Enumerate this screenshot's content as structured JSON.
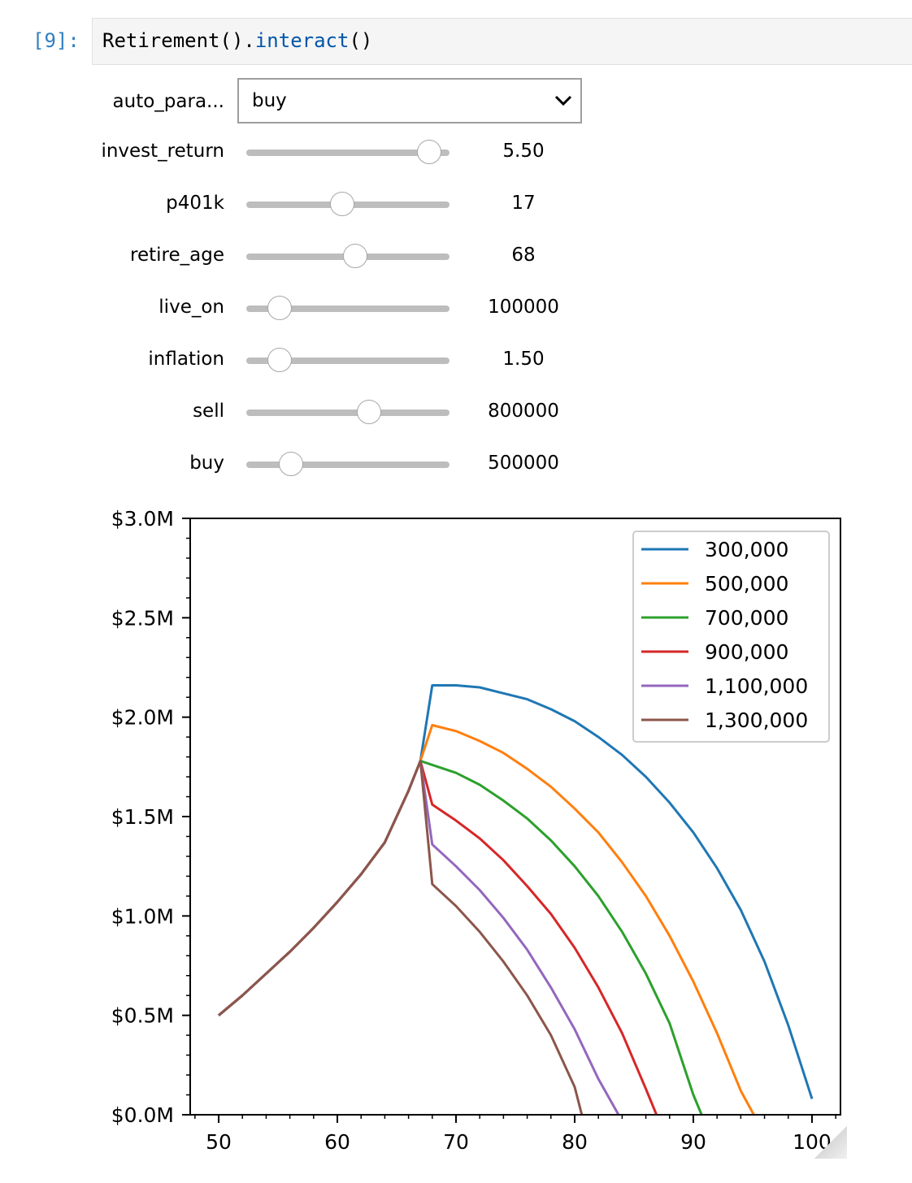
{
  "cell": {
    "prompt": "[9]:",
    "code_class": "Retirement",
    "code_dot": "().",
    "code_method": "interact",
    "code_tail": "()"
  },
  "widgets": {
    "auto_param": {
      "label": "auto_para...",
      "value": "buy",
      "icon": "chevron-down-icon"
    },
    "sliders": [
      {
        "name": "invest_return",
        "label": "invest_return",
        "value": "5.50",
        "level": 0.9
      },
      {
        "name": "p401k",
        "label": "p401k",
        "value": "17",
        "level": 0.47
      },
      {
        "name": "retire_age",
        "label": "retire_age",
        "value": "68",
        "level": 0.535
      },
      {
        "name": "live_on",
        "label": "live_on",
        "value": "100000",
        "level": 0.165
      },
      {
        "name": "inflation",
        "label": "inflation",
        "value": "1.50",
        "level": 0.165
      },
      {
        "name": "sell",
        "label": "sell",
        "value": "800000",
        "level": 0.605
      },
      {
        "name": "buy",
        "label": "buy",
        "value": "500000",
        "level": 0.22
      }
    ]
  },
  "chart_data": {
    "type": "line",
    "xlim": [
      47.6,
      102.4
    ],
    "ylim": [
      0,
      3.0
    ],
    "x_ticks": [
      50,
      60,
      70,
      80,
      90,
      100
    ],
    "x_tick_labels": [
      "50",
      "60",
      "70",
      "80",
      "90",
      "100"
    ],
    "y_ticks": [
      0,
      0.5,
      1.0,
      1.5,
      2.0,
      2.5,
      3.0
    ],
    "y_tick_labels": [
      "$0.0M",
      "$0.5M",
      "$1.0M",
      "$1.5M",
      "$2.0M",
      "$2.5M",
      "$3.0M"
    ],
    "legend_position": "top-right",
    "grid": false,
    "series": [
      {
        "name": "300,000",
        "color": "#1f77b4",
        "x": [
          50,
          52,
          54,
          56,
          58,
          60,
          62,
          64,
          66,
          67,
          68,
          70,
          72,
          74,
          76,
          78,
          80,
          82,
          84,
          86,
          88,
          90,
          92,
          94,
          96,
          98,
          100
        ],
        "y": [
          0.5,
          0.6,
          0.71,
          0.82,
          0.94,
          1.07,
          1.21,
          1.37,
          1.63,
          1.78,
          2.16,
          2.16,
          2.15,
          2.12,
          2.09,
          2.04,
          1.98,
          1.9,
          1.81,
          1.7,
          1.57,
          1.42,
          1.24,
          1.03,
          0.77,
          0.45,
          0.08
        ]
      },
      {
        "name": "500,000",
        "color": "#ff7f0e",
        "x": [
          50,
          52,
          54,
          56,
          58,
          60,
          62,
          64,
          66,
          67,
          68,
          70,
          72,
          74,
          76,
          78,
          80,
          82,
          84,
          86,
          88,
          90,
          92,
          94,
          95.1
        ],
        "y": [
          0.5,
          0.6,
          0.71,
          0.82,
          0.94,
          1.07,
          1.21,
          1.37,
          1.63,
          1.78,
          1.96,
          1.93,
          1.88,
          1.82,
          1.74,
          1.65,
          1.54,
          1.42,
          1.27,
          1.1,
          0.9,
          0.67,
          0.41,
          0.12,
          0.0
        ]
      },
      {
        "name": "700,000",
        "color": "#2ca02c",
        "x": [
          50,
          52,
          54,
          56,
          58,
          60,
          62,
          64,
          66,
          67,
          68,
          70,
          72,
          74,
          76,
          78,
          80,
          82,
          84,
          86,
          88,
          90,
          90.7
        ],
        "y": [
          0.5,
          0.6,
          0.71,
          0.82,
          0.94,
          1.07,
          1.21,
          1.37,
          1.63,
          1.78,
          1.76,
          1.72,
          1.66,
          1.58,
          1.49,
          1.38,
          1.25,
          1.1,
          0.92,
          0.71,
          0.46,
          0.1,
          0.0
        ]
      },
      {
        "name": "900,000",
        "color": "#d62728",
        "x": [
          50,
          52,
          54,
          56,
          58,
          60,
          62,
          64,
          66,
          67,
          68,
          70,
          72,
          74,
          76,
          78,
          80,
          82,
          84,
          86,
          86.9
        ],
        "y": [
          0.5,
          0.6,
          0.71,
          0.82,
          0.94,
          1.07,
          1.21,
          1.37,
          1.63,
          1.78,
          1.56,
          1.48,
          1.39,
          1.28,
          1.15,
          1.01,
          0.84,
          0.64,
          0.41,
          0.13,
          0.0
        ]
      },
      {
        "name": "1,100,000",
        "color": "#9467bd",
        "x": [
          50,
          52,
          54,
          56,
          58,
          60,
          62,
          64,
          66,
          67,
          68,
          70,
          72,
          74,
          76,
          78,
          80,
          82,
          83.7
        ],
        "y": [
          0.5,
          0.6,
          0.71,
          0.82,
          0.94,
          1.07,
          1.21,
          1.37,
          1.63,
          1.78,
          1.36,
          1.25,
          1.13,
          0.99,
          0.83,
          0.64,
          0.43,
          0.18,
          0.0
        ]
      },
      {
        "name": "1,300,000",
        "color": "#8c564b",
        "x": [
          50,
          52,
          54,
          56,
          58,
          60,
          62,
          64,
          66,
          67,
          68,
          70,
          72,
          74,
          76,
          78,
          80,
          80.6
        ],
        "y": [
          0.5,
          0.6,
          0.71,
          0.82,
          0.94,
          1.07,
          1.21,
          1.37,
          1.63,
          1.78,
          1.16,
          1.05,
          0.92,
          0.77,
          0.6,
          0.4,
          0.14,
          0.0
        ]
      }
    ]
  }
}
